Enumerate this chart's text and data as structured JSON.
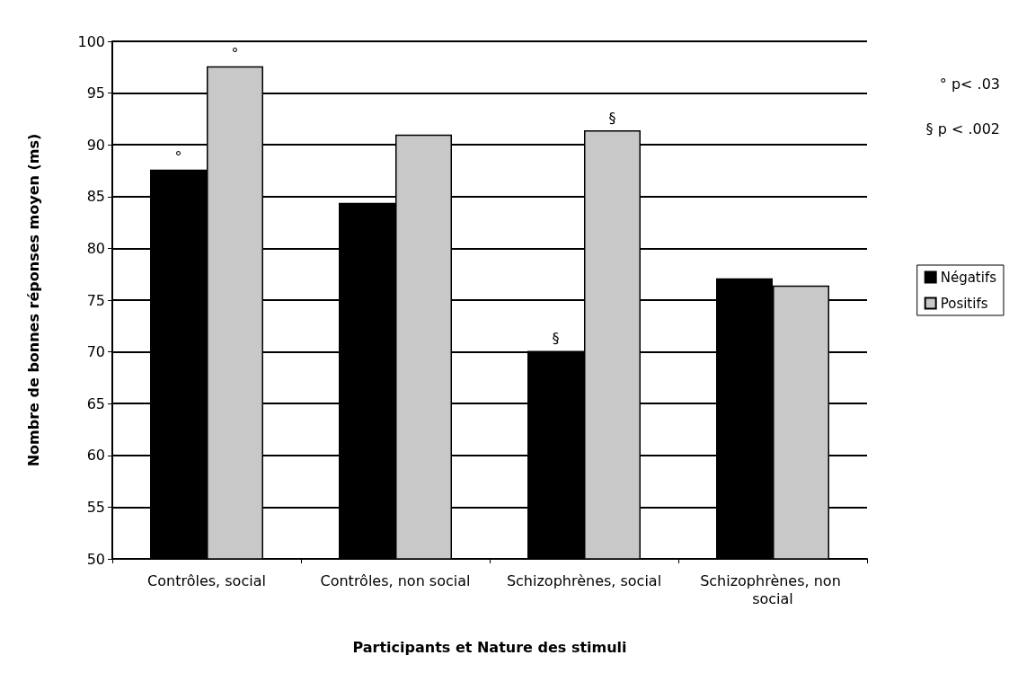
{
  "chart_data": {
    "type": "bar",
    "xlabel": "Participants et Nature des stimuli",
    "ylabel": "Nombre de bonnes réponses moyen (ms)",
    "categories": [
      "Contrôles, social",
      "Contrôles, non social",
      "Schizophrènes, social",
      "Schizophrènes, non social"
    ],
    "series": [
      {
        "name": "Négatifs",
        "color": "#000000",
        "values": [
          87.6,
          84.4,
          70.1,
          77.1
        ]
      },
      {
        "name": "Positifs",
        "color": "#c8c8c8",
        "values": [
          97.6,
          91.0,
          91.4,
          76.4
        ]
      }
    ],
    "ylim": [
      50,
      100
    ],
    "yticks": [
      50,
      55,
      60,
      65,
      70,
      75,
      80,
      85,
      90,
      95,
      100
    ],
    "grid": "y",
    "legend": "right",
    "annotations": [
      {
        "text": "°",
        "x": "Contrôles, social",
        "y": 87.6
      },
      {
        "text": "°",
        "x": "Contrôles, social",
        "y": 97.6
      },
      {
        "text": "§",
        "x": "Schizophrènes, social",
        "y": 70.1
      },
      {
        "text": "§",
        "x": "Schizophrènes, social",
        "y": 91.4
      },
      "° p< .03",
      "§ p < .002"
    ]
  }
}
